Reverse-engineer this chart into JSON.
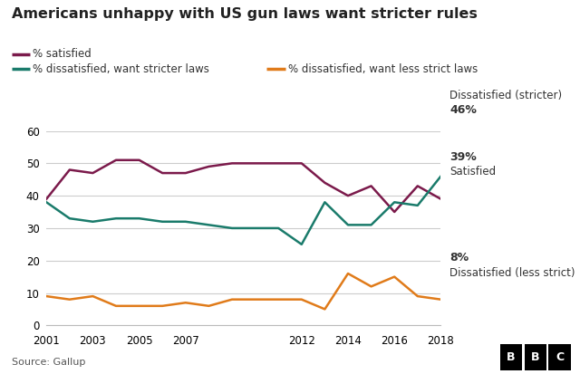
{
  "title": "Americans unhappy with US gun laws want stricter rules",
  "source": "Source: Gallup",
  "years": [
    2001,
    2002,
    2003,
    2004,
    2005,
    2006,
    2007,
    2008,
    2009,
    2010,
    2011,
    2012,
    2013,
    2014,
    2015,
    2016,
    2017,
    2018
  ],
  "satisfied": [
    39,
    48,
    47,
    51,
    51,
    47,
    47,
    49,
    50,
    50,
    50,
    50,
    44,
    40,
    43,
    35,
    43,
    39
  ],
  "dissatisfied_stricter": [
    38,
    33,
    32,
    33,
    33,
    32,
    32,
    31,
    30,
    30,
    30,
    25,
    38,
    31,
    31,
    38,
    37,
    46
  ],
  "dissatisfied_less_strict": [
    9,
    8,
    9,
    6,
    6,
    6,
    7,
    6,
    8,
    8,
    8,
    8,
    5,
    16,
    12,
    15,
    9,
    8
  ],
  "satisfied_color": "#7b1a4b",
  "stricter_color": "#1a7b6b",
  "less_strict_color": "#e07b1a",
  "ylim": [
    0,
    60
  ],
  "yticks": [
    0,
    10,
    20,
    30,
    40,
    50,
    60
  ],
  "bg_color": "#ffffff",
  "grid_color": "#cccccc",
  "xtick_labels": [
    "2001",
    "2003",
    "2005",
    "2007",
    "2012",
    "2014",
    "2016",
    "2018"
  ],
  "xtick_values": [
    2001,
    2003,
    2005,
    2007,
    2012,
    2014,
    2016,
    2018
  ],
  "annotation_stricter": "Dissatisfied (stricter)",
  "annotation_stricter_val": "46%",
  "annotation_satisfied_val": "39%",
  "annotation_satisfied": "Satisfied",
  "annotation_less_strict": "Dissatisfied (less strict)",
  "annotation_less_strict_val": "8%",
  "legend_satisfied": "% satisfied",
  "legend_stricter": "% dissatisfied, want stricter laws",
  "legend_less_strict": "% dissatisfied, want less strict laws"
}
